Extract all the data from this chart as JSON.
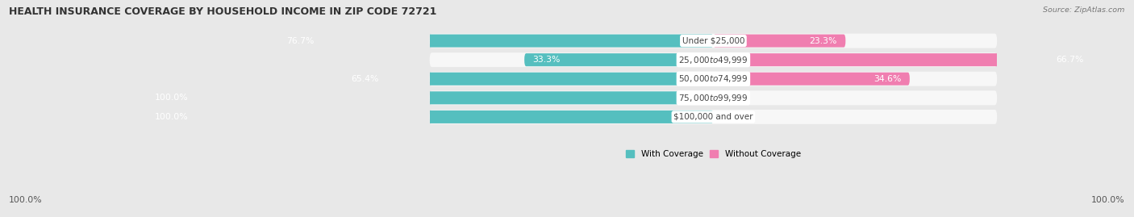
{
  "title": "HEALTH INSURANCE COVERAGE BY HOUSEHOLD INCOME IN ZIP CODE 72721",
  "source": "Source: ZipAtlas.com",
  "categories": [
    "Under $25,000",
    "$25,000 to $49,999",
    "$50,000 to $74,999",
    "$75,000 to $99,999",
    "$100,000 and over"
  ],
  "with_coverage": [
    76.7,
    33.3,
    65.4,
    100.0,
    100.0
  ],
  "without_coverage": [
    23.3,
    66.7,
    34.6,
    0.0,
    0.0
  ],
  "color_with": "#55BFBF",
  "color_without": "#F07EB0",
  "bg_color": "#e8e8e8",
  "row_bg": "#f7f7f7",
  "figsize": [
    14.06,
    2.69
  ],
  "dpi": 100,
  "title_fontsize": 9.0,
  "label_fontsize": 7.8,
  "category_fontsize": 7.5,
  "legend_fontsize": 7.5,
  "source_fontsize": 6.8
}
